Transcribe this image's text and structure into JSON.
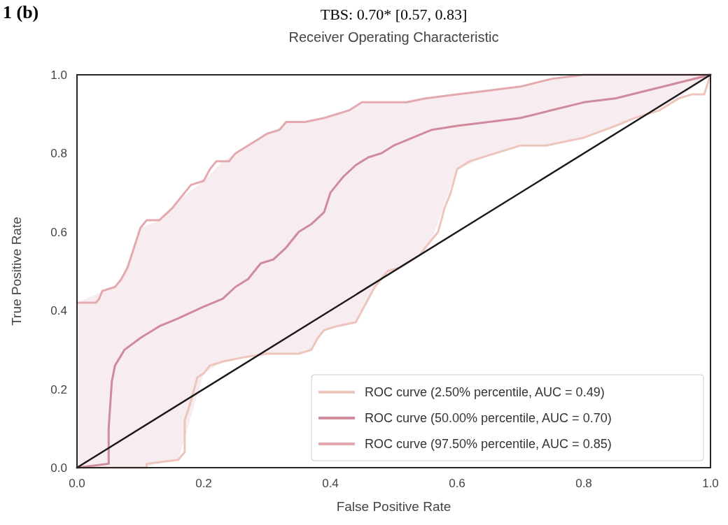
{
  "chart_data": {
    "type": "line",
    "title": "Receiver Operating Characteristic",
    "xlabel": "False Positive Rate",
    "ylabel": "True Positive Rate",
    "annotations": [
      "1 (b)",
      "TBS: 0.70* [0.57, 0.83]"
    ],
    "xlim": [
      0,
      1
    ],
    "ylim": [
      0,
      1
    ],
    "xticks": [
      {
        "value": 0,
        "label": "0.0"
      },
      {
        "value": 0.2,
        "label": "0.2"
      },
      {
        "value": 0.4,
        "label": "0.4"
      },
      {
        "value": 0.6,
        "label": "0.6"
      },
      {
        "value": 0.8,
        "label": "0.8"
      },
      {
        "value": 1,
        "label": "1.0"
      }
    ],
    "yticks": [
      {
        "value": 0,
        "label": "0.0"
      },
      {
        "value": 0.2,
        "label": "0.2"
      },
      {
        "value": 0.4,
        "label": "0.4"
      },
      {
        "value": 0.6,
        "label": "0.6"
      },
      {
        "value": 0.8,
        "label": "0.8"
      },
      {
        "value": 1,
        "label": "1.0"
      }
    ],
    "legend": "bottom right",
    "marker": "none",
    "line_style": "solid",
    "series": [
      {
        "name": "ROC curve (2.50% percentile, AUC = 0.49)",
        "color": "#edc5bd",
        "x": [
          0,
          0.11,
          0.11,
          0.16,
          0.17,
          0.17,
          0.18,
          0.19,
          0.2,
          0.21,
          0.23,
          0.26,
          0.3,
          0.35,
          0.37,
          0.38,
          0.39,
          0.41,
          0.44,
          0.45,
          0.47,
          0.49,
          0.51,
          0.54,
          0.55,
          0.57,
          0.58,
          0.59,
          0.6,
          0.62,
          0.66,
          0.7,
          0.74,
          0.8,
          0.85,
          0.88,
          0.92,
          0.95,
          0.97,
          0.99,
          1
        ],
        "values": [
          0,
          0,
          0.01,
          0.02,
          0.04,
          0.12,
          0.17,
          0.23,
          0.24,
          0.26,
          0.27,
          0.28,
          0.29,
          0.29,
          0.3,
          0.33,
          0.35,
          0.36,
          0.37,
          0.4,
          0.46,
          0.5,
          0.51,
          0.54,
          0.56,
          0.6,
          0.66,
          0.7,
          0.76,
          0.78,
          0.8,
          0.82,
          0.82,
          0.84,
          0.87,
          0.89,
          0.91,
          0.94,
          0.95,
          0.95,
          1
        ]
      },
      {
        "name": "ROC curve (50.00% percentile, AUC = 0.70)",
        "color": "#cf8a9c",
        "x": [
          0,
          0.05,
          0.05,
          0.055,
          0.06,
          0.075,
          0.1,
          0.13,
          0.16,
          0.2,
          0.23,
          0.25,
          0.27,
          0.29,
          0.31,
          0.33,
          0.35,
          0.37,
          0.39,
          0.4,
          0.42,
          0.44,
          0.46,
          0.48,
          0.5,
          0.53,
          0.56,
          0.6,
          0.65,
          0.7,
          0.75,
          0.8,
          0.85,
          0.9,
          0.95,
          1
        ],
        "values": [
          0,
          0.01,
          0.1,
          0.22,
          0.26,
          0.3,
          0.33,
          0.36,
          0.38,
          0.41,
          0.43,
          0.46,
          0.48,
          0.52,
          0.53,
          0.56,
          0.6,
          0.62,
          0.65,
          0.7,
          0.74,
          0.77,
          0.79,
          0.8,
          0.82,
          0.84,
          0.86,
          0.87,
          0.88,
          0.89,
          0.91,
          0.93,
          0.94,
          0.96,
          0.98,
          1
        ],
        "lower": [
          0,
          0,
          0,
          0,
          0,
          0,
          0,
          0.01,
          0.02,
          0.24,
          0.27,
          0.28,
          0.28,
          0.29,
          0.29,
          0.29,
          0.29,
          0.3,
          0.35,
          0.355,
          0.36,
          0.37,
          0.43,
          0.48,
          0.505,
          0.53,
          0.58,
          0.76,
          0.795,
          0.82,
          0.823,
          0.84,
          0.87,
          0.9,
          0.94,
          1
        ],
        "upper": [
          0.42,
          0.455,
          0.455,
          0.46,
          0.46,
          0.5,
          0.61,
          0.63,
          0.68,
          0.73,
          0.78,
          0.8,
          0.82,
          0.84,
          0.855,
          0.88,
          0.88,
          0.883,
          0.89,
          0.895,
          0.905,
          0.92,
          0.93,
          0.93,
          0.93,
          0.933,
          0.942,
          0.95,
          0.96,
          0.97,
          0.99,
          1,
          1,
          1,
          1,
          1
        ]
      },
      {
        "name": "ROC curve (97.50% percentile, AUC = 0.85)",
        "color": "#e3a9ae",
        "x": [
          0,
          0.03,
          0.035,
          0.04,
          0.06,
          0.07,
          0.08,
          0.09,
          0.1,
          0.11,
          0.13,
          0.15,
          0.16,
          0.17,
          0.18,
          0.2,
          0.21,
          0.22,
          0.24,
          0.25,
          0.27,
          0.29,
          0.3,
          0.32,
          0.33,
          0.36,
          0.39,
          0.41,
          0.43,
          0.45,
          0.52,
          0.55,
          0.6,
          0.65,
          0.7,
          0.75,
          0.8,
          1
        ],
        "values": [
          0.42,
          0.42,
          0.43,
          0.45,
          0.46,
          0.48,
          0.51,
          0.56,
          0.61,
          0.63,
          0.63,
          0.66,
          0.68,
          0.7,
          0.72,
          0.73,
          0.76,
          0.78,
          0.78,
          0.8,
          0.82,
          0.84,
          0.85,
          0.86,
          0.88,
          0.88,
          0.89,
          0.9,
          0.91,
          0.93,
          0.93,
          0.94,
          0.95,
          0.96,
          0.97,
          0.99,
          1,
          1
        ]
      },
      {
        "color": "#1a1a1a",
        "x": [
          0,
          1
        ],
        "values": [
          0,
          1
        ]
      }
    ]
  }
}
